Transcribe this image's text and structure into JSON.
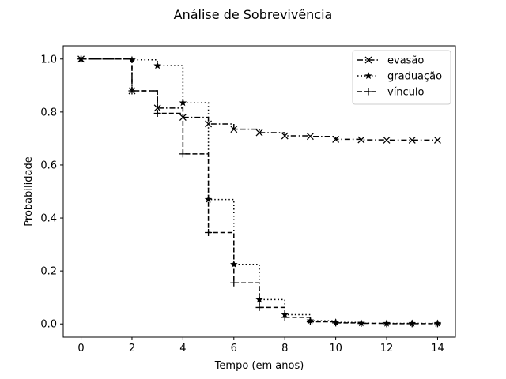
{
  "chart_data": {
    "type": "line",
    "step": "post",
    "title": "Análise de Sobrevivência",
    "xlabel": "Tempo (em anos)",
    "ylabel": "Probabilidade",
    "xlim": [
      -0.7,
      14.7
    ],
    "ylim": [
      -0.05,
      1.05
    ],
    "xticks": [
      0,
      2,
      4,
      6,
      8,
      10,
      12,
      14
    ],
    "yticks": [
      0.0,
      0.2,
      0.4,
      0.6,
      0.8,
      1.0
    ],
    "grid": false,
    "legend_position": "top-right",
    "x": [
      0,
      2,
      3,
      4,
      5,
      6,
      7,
      8,
      9,
      10,
      11,
      12,
      13,
      14
    ],
    "series": [
      {
        "name": "evasão",
        "linestyle": "dashdot",
        "marker": "x",
        "color": "#000000",
        "values": [
          1.0,
          0.88,
          0.815,
          0.78,
          0.755,
          0.735,
          0.722,
          0.71,
          0.708,
          0.697,
          0.695,
          0.694,
          0.694,
          0.694
        ]
      },
      {
        "name": "graduação",
        "linestyle": "dotted",
        "marker": "star",
        "color": "#000000",
        "values": [
          1.0,
          0.997,
          0.975,
          0.835,
          0.47,
          0.225,
          0.092,
          0.035,
          0.012,
          0.006,
          0.003,
          0.002,
          0.002,
          0.002
        ]
      },
      {
        "name": "vínculo",
        "linestyle": "dashed",
        "marker": "plus",
        "color": "#000000",
        "values": [
          1.0,
          0.88,
          0.795,
          0.642,
          0.345,
          0.155,
          0.062,
          0.025,
          0.008,
          0.004,
          0.002,
          0.001,
          0.001,
          0.001
        ]
      }
    ]
  }
}
